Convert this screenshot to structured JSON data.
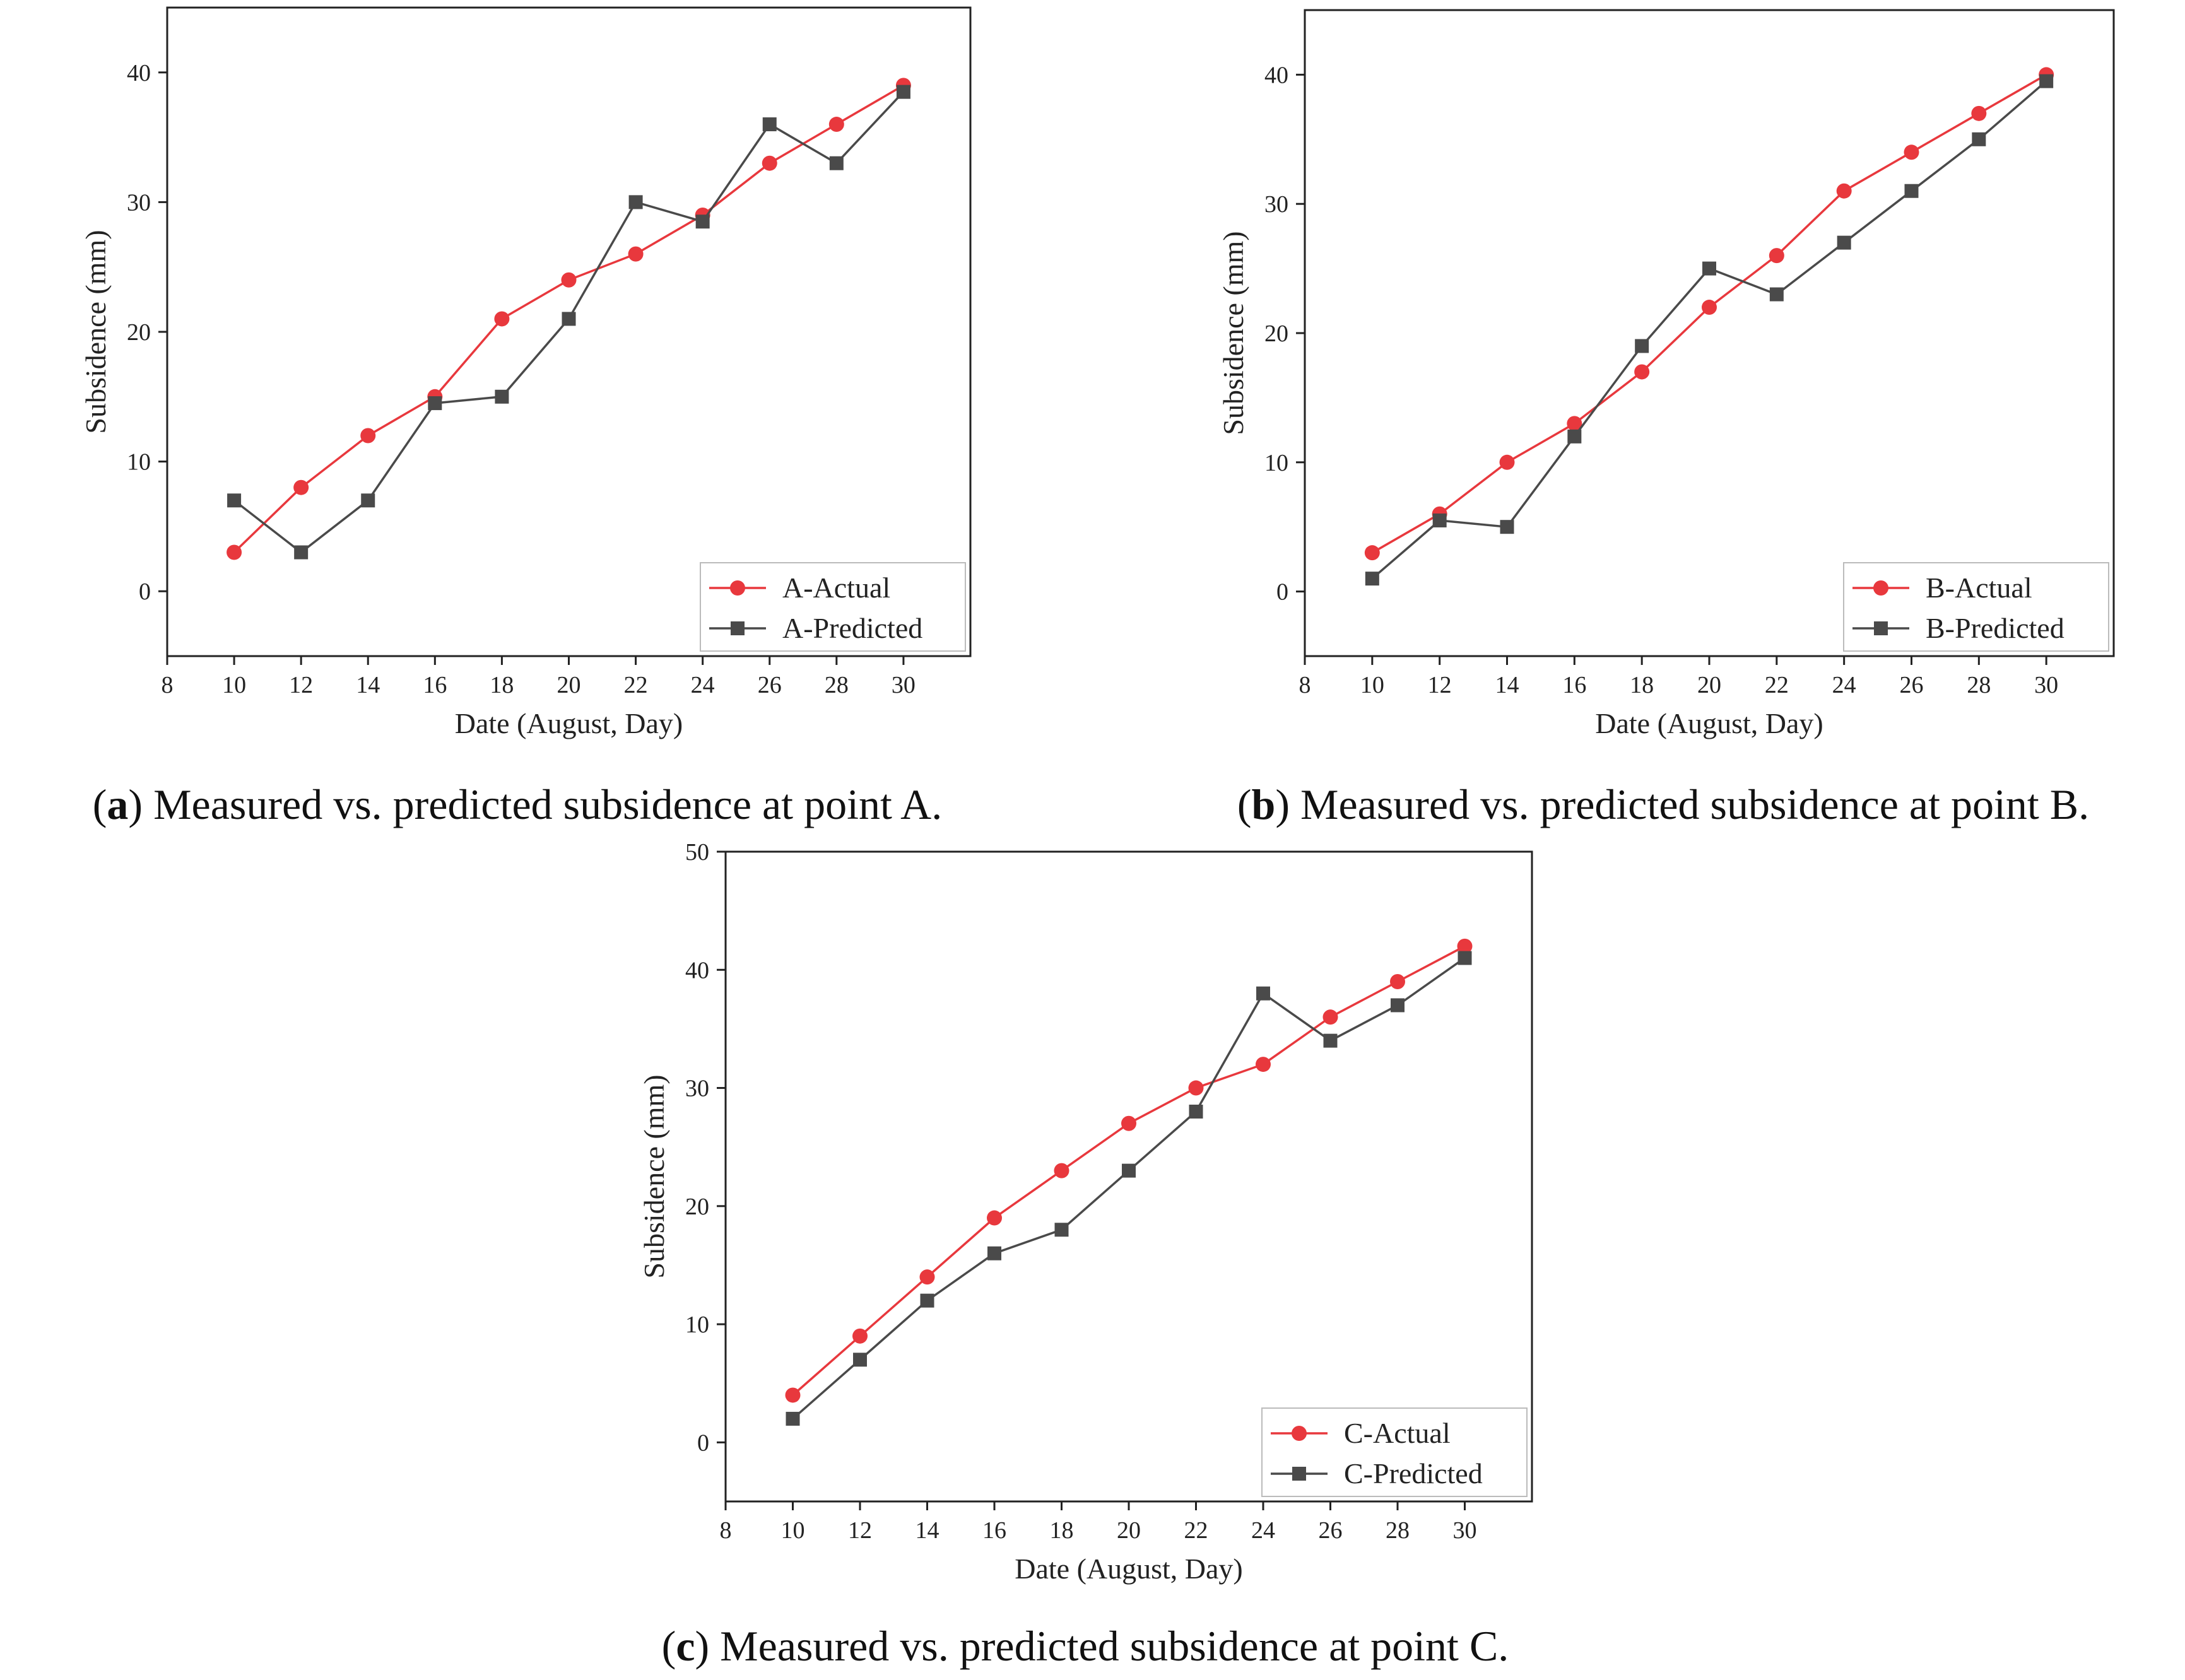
{
  "figure": {
    "captions": [
      {
        "letter": "a",
        "text": "Measured vs. predicted subsidence at point A."
      },
      {
        "letter": "b",
        "text": "Measured vs. predicted subsidence at point B."
      },
      {
        "letter": "c",
        "text": "Measured vs. predicted subsidence at point C."
      }
    ]
  },
  "chart_data": [
    {
      "id": "a",
      "type": "line",
      "title": "",
      "xlabel": "Date (August, Day)",
      "ylabel": "Subsidence (mm)",
      "xlim": [
        8,
        32
      ],
      "ylim": [
        -5,
        45
      ],
      "xticks": [
        8,
        10,
        12,
        14,
        16,
        18,
        20,
        22,
        24,
        26,
        28,
        30
      ],
      "yticks": [
        0,
        10,
        20,
        30,
        40
      ],
      "legend_position": "bottom-right",
      "x": [
        10,
        12,
        14,
        16,
        18,
        20,
        22,
        24,
        26,
        28,
        30
      ],
      "series": [
        {
          "name": "A-Actual",
          "marker": "circle",
          "color": "#e8383d",
          "values": [
            3,
            8,
            12,
            15,
            21,
            24,
            26,
            29,
            33,
            36,
            39
          ]
        },
        {
          "name": "A-Predicted",
          "marker": "square",
          "color": "#4a4a4a",
          "values": [
            7,
            3,
            7,
            14.5,
            15,
            21,
            30,
            28.5,
            36,
            33,
            38.5
          ]
        }
      ]
    },
    {
      "id": "b",
      "type": "line",
      "title": "",
      "xlabel": "Date (August, Day)",
      "ylabel": "Subsidence (mm)",
      "xlim": [
        8,
        32
      ],
      "ylim": [
        -5,
        45
      ],
      "xticks": [
        8,
        10,
        12,
        14,
        16,
        18,
        20,
        22,
        24,
        26,
        28,
        30
      ],
      "yticks": [
        0,
        10,
        20,
        30,
        40
      ],
      "legend_position": "bottom-right",
      "x": [
        10,
        12,
        14,
        16,
        18,
        20,
        22,
        24,
        26,
        28,
        30
      ],
      "series": [
        {
          "name": "B-Actual",
          "marker": "circle",
          "color": "#e8383d",
          "values": [
            3,
            6,
            10,
            13,
            17,
            22,
            26,
            31,
            34,
            37,
            40
          ]
        },
        {
          "name": "B-Predicted",
          "marker": "square",
          "color": "#4a4a4a",
          "values": [
            1,
            5.5,
            5,
            12,
            19,
            25,
            23,
            27,
            31,
            35,
            39.5
          ]
        }
      ]
    },
    {
      "id": "c",
      "type": "line",
      "title": "",
      "xlabel": "Date (August, Day)",
      "ylabel": "Subsidence (mm)",
      "xlim": [
        8,
        32
      ],
      "ylim": [
        -5,
        50
      ],
      "xticks": [
        8,
        10,
        12,
        14,
        16,
        18,
        20,
        22,
        24,
        26,
        28,
        30
      ],
      "yticks": [
        0,
        10,
        20,
        30,
        40,
        50
      ],
      "legend_position": "bottom-right",
      "x": [
        10,
        12,
        14,
        16,
        18,
        20,
        22,
        24,
        26,
        28,
        30
      ],
      "series": [
        {
          "name": "C-Actual",
          "marker": "circle",
          "color": "#e8383d",
          "values": [
            4,
            9,
            14,
            19,
            23,
            27,
            30,
            32,
            36,
            39,
            42
          ]
        },
        {
          "name": "C-Predicted",
          "marker": "square",
          "color": "#4a4a4a",
          "values": [
            2,
            7,
            12,
            16,
            18,
            23,
            28,
            38,
            34,
            37,
            41
          ]
        }
      ]
    }
  ]
}
